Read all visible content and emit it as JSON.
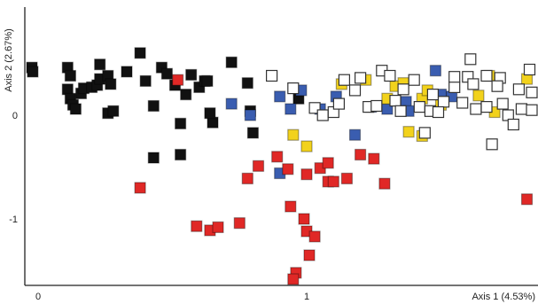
{
  "chart_data": {
    "type": "scatter",
    "xlabel": "Axis 1 (4.53%)",
    "ylabel": "Axis 2 (2.67%)",
    "xlim": [
      -0.08,
      1.83
    ],
    "ylim": [
      -1.62,
      0.9
    ],
    "x_ticks": [
      {
        "value": 0,
        "label": "0"
      },
      {
        "value": 1,
        "label": "1"
      }
    ],
    "y_ticks": [
      {
        "value": 0,
        "label": "0"
      },
      {
        "value": -1,
        "label": "-1"
      }
    ],
    "grid": false,
    "legend": "none",
    "series": [
      {
        "color": "#111111",
        "filled": true,
        "points": [
          [
            -0.03,
            0.46
          ],
          [
            -0.02,
            0.42
          ],
          [
            0.11,
            0.46
          ],
          [
            0.12,
            0.38
          ],
          [
            0.11,
            0.25
          ],
          [
            0.12,
            0.16
          ],
          [
            0.13,
            0.1
          ],
          [
            0.14,
            0.06
          ],
          [
            0.16,
            0.21
          ],
          [
            0.17,
            0.26
          ],
          [
            0.2,
            0.27
          ],
          [
            0.22,
            0.29
          ],
          [
            0.23,
            0.35
          ],
          [
            0.23,
            0.49
          ],
          [
            0.26,
            0.38
          ],
          [
            0.27,
            0.3
          ],
          [
            0.26,
            0.02
          ],
          [
            0.28,
            0.04
          ],
          [
            0.33,
            0.42
          ],
          [
            0.38,
            0.6
          ],
          [
            0.4,
            0.33
          ],
          [
            0.43,
            0.09
          ],
          [
            0.46,
            0.46
          ],
          [
            0.48,
            0.4
          ],
          [
            0.51,
            0.29
          ],
          [
            0.55,
            0.2
          ],
          [
            0.57,
            0.39
          ],
          [
            0.6,
            0.27
          ],
          [
            0.62,
            0.33
          ],
          [
            0.63,
            0.33
          ],
          [
            0.65,
            -0.07
          ],
          [
            0.72,
            0.51
          ],
          [
            0.78,
            0.31
          ],
          [
            0.64,
            0.02
          ],
          [
            0.53,
            -0.08
          ],
          [
            0.43,
            -0.41
          ],
          [
            0.53,
            -0.38
          ],
          [
            0.97,
            0.16
          ],
          [
            0.79,
            0.04
          ],
          [
            0.8,
            -0.17
          ]
        ]
      },
      {
        "color": "#3a5db0",
        "filled": true,
        "points": [
          [
            0.72,
            0.11
          ],
          [
            0.79,
            -0.0
          ],
          [
            0.9,
            0.18
          ],
          [
            0.94,
            0.06
          ],
          [
            0.98,
            0.24
          ],
          [
            1.05,
            0.06
          ],
          [
            1.18,
            -0.19
          ],
          [
            1.24,
            0.08
          ],
          [
            1.3,
            0.06
          ],
          [
            1.37,
            0.13
          ],
          [
            1.38,
            0.04
          ],
          [
            1.48,
            0.43
          ],
          [
            1.5,
            0.2
          ],
          [
            1.54,
            0.18
          ],
          [
            1.11,
            0.18
          ],
          [
            0.9,
            -0.56
          ]
        ]
      },
      {
        "color": "#f2d21c",
        "filled": true,
        "points": [
          [
            0.95,
            -0.19
          ],
          [
            1.0,
            -0.3
          ],
          [
            1.13,
            0.3
          ],
          [
            1.22,
            0.34
          ],
          [
            1.3,
            0.16
          ],
          [
            1.33,
            0.28
          ],
          [
            1.36,
            0.31
          ],
          [
            1.38,
            -0.16
          ],
          [
            1.43,
            0.16
          ],
          [
            1.45,
            0.24
          ],
          [
            1.5,
            0.1
          ],
          [
            1.64,
            0.19
          ],
          [
            1.68,
            0.38
          ],
          [
            1.82,
            0.35
          ],
          [
            1.7,
            0.03
          ],
          [
            1.43,
            -0.2
          ]
        ]
      },
      {
        "color": "#e02826",
        "filled": true,
        "points": [
          [
            0.52,
            0.34
          ],
          [
            0.38,
            -0.7
          ],
          [
            0.59,
            -1.07
          ],
          [
            0.64,
            -1.11
          ],
          [
            0.67,
            -1.08
          ],
          [
            0.75,
            -1.04
          ],
          [
            0.78,
            -0.61
          ],
          [
            0.82,
            -0.49
          ],
          [
            0.89,
            -0.4
          ],
          [
            0.93,
            -0.52
          ],
          [
            1.0,
            -0.57
          ],
          [
            1.05,
            -0.51
          ],
          [
            1.08,
            -0.64
          ],
          [
            1.08,
            -0.46
          ],
          [
            1.1,
            -0.64
          ],
          [
            1.15,
            -0.61
          ],
          [
            1.2,
            -0.38
          ],
          [
            1.25,
            -0.42
          ],
          [
            1.29,
            -0.66
          ],
          [
            1.82,
            -0.81
          ],
          [
            0.94,
            -0.88
          ],
          [
            0.99,
            -1.0
          ],
          [
            1.0,
            -1.12
          ],
          [
            1.03,
            -1.17
          ],
          [
            1.01,
            -1.35
          ],
          [
            0.96,
            -1.52
          ],
          [
            0.95,
            -1.62
          ]
        ]
      },
      {
        "color": "#ffffff",
        "filled": false,
        "points": [
          [
            0.87,
            0.38
          ],
          [
            0.95,
            0.26
          ],
          [
            1.03,
            0.07
          ],
          [
            1.06,
            0.0
          ],
          [
            1.1,
            0.03
          ],
          [
            1.12,
            0.11
          ],
          [
            1.14,
            0.34
          ],
          [
            1.18,
            0.24
          ],
          [
            1.2,
            0.36
          ],
          [
            1.23,
            0.08
          ],
          [
            1.26,
            0.09
          ],
          [
            1.28,
            0.43
          ],
          [
            1.31,
            0.38
          ],
          [
            1.33,
            0.14
          ],
          [
            1.35,
            0.04
          ],
          [
            1.4,
            0.34
          ],
          [
            1.42,
            0.08
          ],
          [
            1.46,
            0.04
          ],
          [
            1.51,
            0.13
          ],
          [
            1.55,
            0.27
          ],
          [
            1.55,
            0.37
          ],
          [
            1.58,
            0.12
          ],
          [
            1.6,
            0.37
          ],
          [
            1.62,
            0.3
          ],
          [
            1.63,
            0.06
          ],
          [
            1.67,
            0.08
          ],
          [
            1.69,
            -0.28
          ],
          [
            1.72,
            0.36
          ],
          [
            1.73,
            0.11
          ],
          [
            1.75,
            0.0
          ],
          [
            1.77,
            -0.09
          ],
          [
            1.79,
            0.25
          ],
          [
            1.8,
            0.06
          ],
          [
            1.83,
            0.44
          ],
          [
            1.84,
            0.22
          ],
          [
            1.85,
            0.05
          ],
          [
            1.61,
            0.54
          ],
          [
            1.67,
            0.38
          ],
          [
            1.71,
            0.28
          ],
          [
            1.47,
            0.2
          ],
          [
            1.44,
            -0.17
          ],
          [
            1.36,
            0.25
          ],
          [
            1.49,
            0.03
          ]
        ]
      }
    ]
  }
}
